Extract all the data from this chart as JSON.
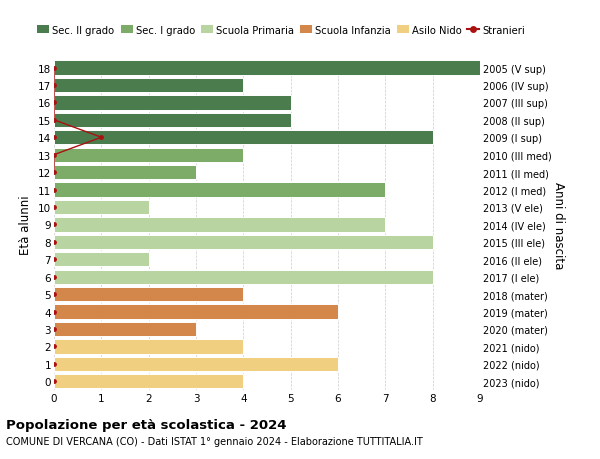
{
  "ages": [
    18,
    17,
    16,
    15,
    14,
    13,
    12,
    11,
    10,
    9,
    8,
    7,
    6,
    5,
    4,
    3,
    2,
    1,
    0
  ],
  "right_labels": [
    "2005 (V sup)",
    "2006 (IV sup)",
    "2007 (III sup)",
    "2008 (II sup)",
    "2009 (I sup)",
    "2010 (III med)",
    "2011 (II med)",
    "2012 (I med)",
    "2013 (V ele)",
    "2014 (IV ele)",
    "2015 (III ele)",
    "2016 (II ele)",
    "2017 (I ele)",
    "2018 (mater)",
    "2019 (mater)",
    "2020 (mater)",
    "2021 (nido)",
    "2022 (nido)",
    "2023 (nido)"
  ],
  "bar_values": [
    9,
    4,
    5,
    5,
    8,
    4,
    3,
    7,
    2,
    7,
    8,
    2,
    8,
    4,
    6,
    3,
    4,
    6,
    4
  ],
  "bar_colors": [
    "#4a7c4e",
    "#4a7c4e",
    "#4a7c4e",
    "#4a7c4e",
    "#4a7c4e",
    "#7dab68",
    "#7dab68",
    "#7dab68",
    "#b8d4a0",
    "#b8d4a0",
    "#b8d4a0",
    "#b8d4a0",
    "#b8d4a0",
    "#d4874a",
    "#d4874a",
    "#d4874a",
    "#f0d080",
    "#f0d080",
    "#f0d080"
  ],
  "stranieri_line_x": [
    0,
    0,
    0,
    0,
    1,
    0,
    0
  ],
  "stranieri_line_y": [
    18,
    17,
    16,
    15,
    14,
    13,
    12
  ],
  "legend_labels": [
    "Sec. II grado",
    "Sec. I grado",
    "Scuola Primaria",
    "Scuola Infanzia",
    "Asilo Nido",
    "Stranieri"
  ],
  "legend_colors": [
    "#4a7c4e",
    "#7dab68",
    "#b8d4a0",
    "#d4874a",
    "#f0d080",
    "#aa1111"
  ],
  "ylabel_left": "Età alunni",
  "ylabel_right": "Anni di nascita",
  "title": "Popolazione per età scolastica - 2024",
  "subtitle": "COMUNE DI VERCANA (CO) - Dati ISTAT 1° gennaio 2024 - Elaborazione TUTTITALIA.IT",
  "xlim": [
    0,
    9
  ],
  "ylim": [
    -0.5,
    18.5
  ],
  "background_color": "#ffffff",
  "grid_color": "#cccccc",
  "bar_height": 0.82
}
